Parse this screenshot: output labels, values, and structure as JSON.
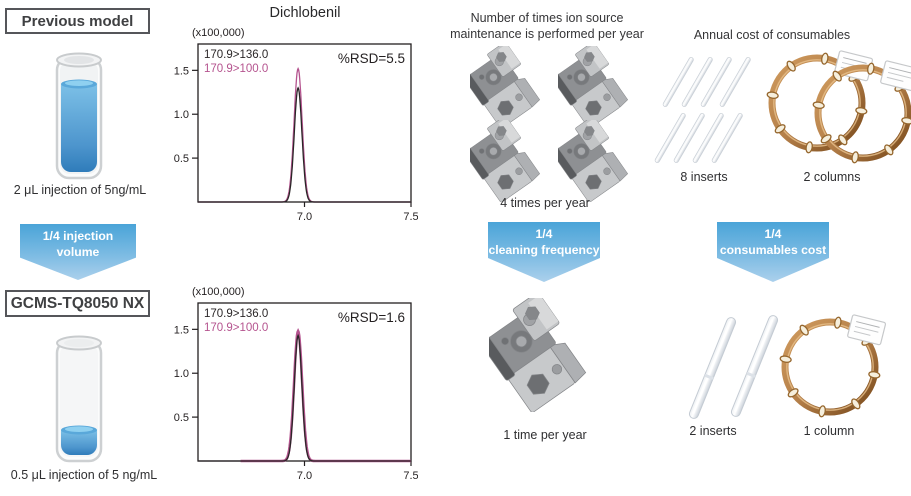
{
  "colors": {
    "arrow_top": "#4aa4d8",
    "arrow_bottom": "#abd0ec",
    "trace_black": "#2b2728",
    "trace_magenta": "#b5548f",
    "liquid_blue": "#3a86c4",
    "copper": "#96672e",
    "text_dark": "#3c3c3e"
  },
  "left_panel": {
    "previous_model_label": "Previous model",
    "previous_caption": "2 μL injection of 5ng/mL",
    "arrow": {
      "line1": "1/4 injection",
      "line2": "volume"
    },
    "new_model_label": "GCMS-TQ8050 NX",
    "new_caption": "0.5 μL injection of 5 ng/mL"
  },
  "chart_data": [
    {
      "type": "line",
      "title": "Dichlobenil",
      "units_label": "(x100,000)",
      "annotation": "%RSD=5.5",
      "x_range": [
        6.5,
        7.5
      ],
      "y_range": [
        0,
        1.8
      ],
      "x_ticks": [
        7.0,
        7.5
      ],
      "y_ticks": [
        0.5,
        1.0,
        1.5
      ],
      "xlabel": "",
      "ylabel": "",
      "grid": false,
      "legend_position": "top-left",
      "series": [
        {
          "name": "170.9>136.0",
          "color": "#2b2728",
          "peak_center": 6.97,
          "peak_height": 1.3,
          "peak_sigma": 0.018,
          "width": 1.3
        },
        {
          "name": "170.9>100.0",
          "color": "#b5548f",
          "peak_center": 6.97,
          "peak_height": 1.52,
          "peak_sigma": 0.019,
          "width": 1.3
        }
      ]
    },
    {
      "type": "line",
      "title": "",
      "units_label": "(x100,000)",
      "annotation": "%RSD=1.6",
      "x_range": [
        6.5,
        7.5
      ],
      "y_range": [
        0,
        1.8
      ],
      "x_ticks": [
        7.0,
        7.5
      ],
      "y_ticks": [
        0.5,
        1.0,
        1.5
      ],
      "xlabel": "",
      "ylabel": "",
      "grid": false,
      "legend_position": "top-left",
      "series": [
        {
          "name": "170.9>136.0",
          "color": "#2b2728",
          "peak_center": 6.97,
          "peak_height": 1.43,
          "peak_sigma": 0.018,
          "width": 1.3
        },
        {
          "name": "170.9>100.0",
          "color": "#b5548f",
          "peak_center": 6.97,
          "peak_height": 1.48,
          "peak_sigma": 0.019,
          "width": 2.6,
          "x_start": 6.7
        }
      ]
    }
  ],
  "maintenance_panel": {
    "header": "Number of times ion source maintenance is performed per year",
    "before_caption": "4 times per year",
    "arrow": {
      "line1": "1/4",
      "line2": "cleaning frequency"
    },
    "after_caption": "1 time per year"
  },
  "consumables_panel": {
    "header": "Annual cost of consumables",
    "before_inserts_caption": "8 inserts",
    "before_columns_caption": "2 columns",
    "arrow": {
      "line1": "1/4",
      "line2": "consumables cost"
    },
    "after_inserts_caption": "2 inserts",
    "after_column_caption": "1 column"
  }
}
